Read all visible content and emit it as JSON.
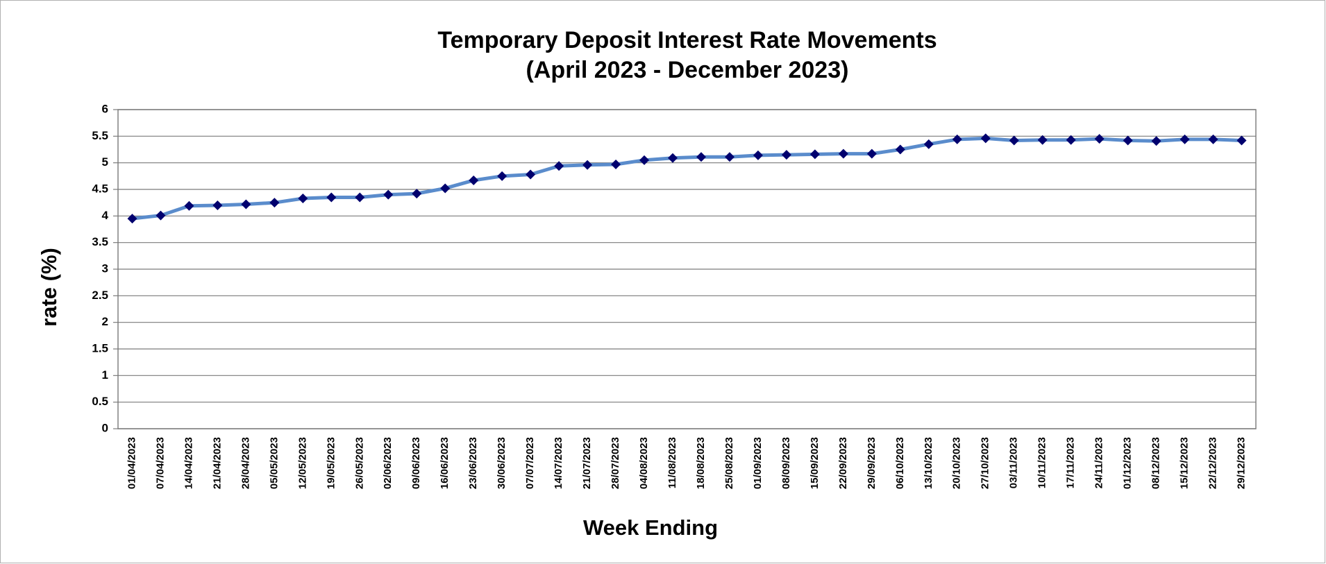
{
  "chart_data": {
    "type": "line",
    "title": "Temporary Deposit Interest Rate Movements",
    "subtitle": "(April 2023 - December 2023)",
    "x_label": "Week Ending",
    "y_label": "rate (%)",
    "categories": [
      "01/04/2023",
      "07/04/2023",
      "14/04/2023",
      "21/04/2023",
      "28/04/2023",
      "05/05/2023",
      "12/05/2023",
      "19/05/2023",
      "26/05/2023",
      "02/06/2023",
      "09/06/2023",
      "16/06/2023",
      "23/06/2023",
      "30/06/2023",
      "07/07/2023",
      "14/07/2023",
      "21/07/2023",
      "28/07/2023",
      "04/08/2023",
      "11/08/2023",
      "18/08/2023",
      "25/08/2023",
      "01/09/2023",
      "08/09/2023",
      "15/09/2023",
      "22/09/2023",
      "29/09/2023",
      "06/10/2023",
      "13/10/2023",
      "20/10/2023",
      "27/10/2023",
      "03/11/2023",
      "10/11/2023",
      "17/11/2023",
      "24/11/2023",
      "01/12/2023",
      "08/12/2023",
      "15/12/2023",
      "22/12/2023",
      "29/12/2023"
    ],
    "values": [
      3.95,
      4.01,
      4.19,
      4.2,
      4.22,
      4.25,
      4.33,
      4.35,
      4.35,
      4.4,
      4.42,
      4.52,
      4.67,
      4.75,
      4.78,
      4.94,
      4.96,
      4.97,
      5.05,
      5.09,
      5.11,
      5.11,
      5.14,
      5.15,
      5.16,
      5.17,
      5.17,
      5.25,
      5.35,
      5.44,
      5.46,
      5.42,
      5.43,
      5.43,
      5.45,
      5.42,
      5.41,
      5.44,
      5.44,
      5.42
    ],
    "color": "#5a8ccc",
    "marker_color": "#00006e",
    "ylim": [
      0,
      6
    ],
    "yticks": [
      0,
      0.5,
      1,
      1.5,
      2,
      2.5,
      3,
      3.5,
      4,
      4.5,
      5,
      5.5,
      6
    ],
    "grid": true
  }
}
